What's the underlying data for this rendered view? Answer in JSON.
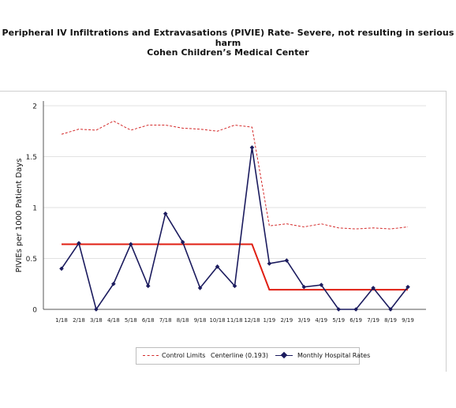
{
  "chart_data": {
    "type": "line",
    "title": "Peripheral IV Infiltrations and Extravasations (PIVIE) Rate- Severe, not resulting in serious harm",
    "subtitle": "Cohen Children’s Medical Center",
    "ylabel": "PIVIEs per 1000 Patient Days",
    "xlabel": "",
    "ylim": [
      0,
      2
    ],
    "yticks": [
      "0",
      "0.5",
      "1",
      "1.5",
      "2"
    ],
    "ytick_values": [
      0,
      0.5,
      1,
      1.5,
      2
    ],
    "grid": true,
    "legend_position": "bottom",
    "categories": [
      "1/18",
      "2/18",
      "3/18",
      "4/18",
      "5/18",
      "6/18",
      "7/18",
      "8/18",
      "9/18",
      "10/18",
      "11/18",
      "12/18",
      "1/19",
      "2/19",
      "3/19",
      "4/19",
      "5/19",
      "6/19",
      "7/19",
      "8/19",
      "9/19"
    ],
    "series": [
      {
        "name": "Control Limits",
        "style": "dashed",
        "color": "#d42b2b",
        "values": [
          1.72,
          1.77,
          1.76,
          1.85,
          1.76,
          1.81,
          1.81,
          1.78,
          1.77,
          1.75,
          1.81,
          1.79,
          0.82,
          0.84,
          0.81,
          0.84,
          0.8,
          0.79,
          0.8,
          0.79,
          0.81
        ]
      },
      {
        "name": "Centerline (0.193)",
        "style": "solid",
        "color": "#e01e12",
        "values": [
          0.64,
          0.64,
          0.64,
          0.64,
          0.64,
          0.64,
          0.64,
          0.64,
          0.64,
          0.64,
          0.64,
          0.64,
          0.193,
          0.193,
          0.193,
          0.193,
          0.193,
          0.193,
          0.193,
          0.193,
          0.193
        ]
      },
      {
        "name": "Monthly Hospital Rates",
        "style": "solid-marker",
        "color": "#1b1b5e",
        "values": [
          0.4,
          0.65,
          0.0,
          0.25,
          0.64,
          0.23,
          0.94,
          0.66,
          0.21,
          0.42,
          0.23,
          1.59,
          0.45,
          0.48,
          0.22,
          0.24,
          0.0,
          0.0,
          0.21,
          0.0,
          0.22
        ]
      }
    ],
    "legend": {
      "control_label": "Control Limits",
      "centerline_label": "Centerline (0.193)",
      "monthly_label": "Monthly Hospital Rates"
    }
  }
}
